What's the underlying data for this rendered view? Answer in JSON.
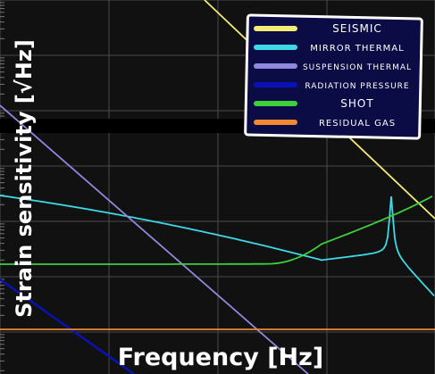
{
  "chart_data": {
    "type": "line",
    "xlabel": "Frequency [Hz]",
    "ylabel": "Strain sensitivity [√Hz]",
    "xscale": "log",
    "yscale": "log",
    "grid": true,
    "legend_position": "top-right",
    "background": "#111111",
    "series": [
      {
        "name": "SEISMIC",
        "color": "#f2ec74",
        "x": [
          1,
          10,
          100,
          1000
        ],
        "y": [
          1e-09,
          1e-11,
          1e-13,
          1e-15
        ]
      },
      {
        "name": "MIRROR THERMAL",
        "color": "#3fd8e6",
        "x": [
          1,
          10,
          100,
          1000
        ],
        "y": [
          1e-11,
          1e-12,
          1e-13,
          1e-14
        ]
      },
      {
        "name": "SUSPENSION THERMAL",
        "color": "#8f88dd",
        "x": [
          1,
          10,
          100,
          1000
        ],
        "y": [
          1e-10,
          1e-11,
          1e-12,
          1e-13
        ]
      },
      {
        "name": "RADIATION PRESSURE",
        "color": "#0a12b5",
        "x": [
          1,
          10,
          100,
          1000
        ],
        "y": [
          1e-12,
          1e-13,
          1e-14,
          1e-15
        ]
      },
      {
        "name": "SHOT",
        "color": "#3ecf3c",
        "x": [
          1,
          10,
          100,
          1000
        ],
        "y": [
          1e-13,
          1e-13,
          1e-13,
          1e-12
        ]
      },
      {
        "name": "RESIDUAL GAS",
        "color": "#f08a32",
        "x": [
          1,
          10,
          100,
          1000
        ],
        "y": [
          1e-14,
          1e-14,
          1e-14,
          1e-14
        ]
      }
    ]
  }
}
